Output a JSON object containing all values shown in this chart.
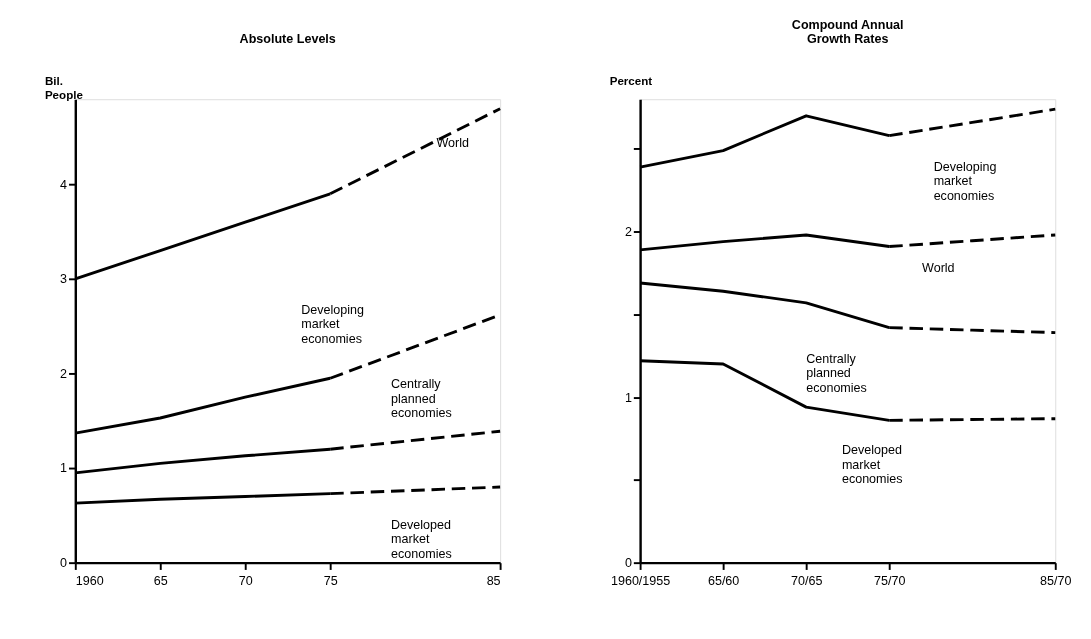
{
  "chart_data": [
    {
      "type": "line",
      "title": "Absolute Levels",
      "ylabel": "Bil.\nPeople",
      "xlim": [
        1960,
        1985
      ],
      "xticks": [
        {
          "value": 1960,
          "label": "1960"
        },
        {
          "value": 1965,
          "label": "65"
        },
        {
          "value": 1970,
          "label": "70"
        },
        {
          "value": 1975,
          "label": "75"
        },
        {
          "value": 1985,
          "label": "85"
        }
      ],
      "ylim": [
        0,
        4.9
      ],
      "yticks": [
        0,
        1,
        2,
        3,
        4
      ],
      "grid": false,
      "series": [
        {
          "color": "#000000",
          "line_style": "solid",
          "x": [
            1960,
            1965,
            1970,
            1975
          ],
          "values": [
            3.0,
            3.3,
            3.6,
            3.9
          ]
        },
        {
          "name": "World",
          "color": "#000000",
          "line_style": "dashed",
          "x": [
            1975,
            1985
          ],
          "values": [
            3.9,
            4.8
          ]
        },
        {
          "color": "#000000",
          "line_style": "solid",
          "x": [
            1960,
            1965,
            1970,
            1975
          ],
          "values": [
            1.37,
            1.53,
            1.75,
            1.95
          ]
        },
        {
          "name": "Developing\nmarket\neconomies",
          "color": "#000000",
          "line_style": "dashed",
          "x": [
            1975,
            1985
          ],
          "values": [
            1.95,
            2.62
          ]
        },
        {
          "color": "#000000",
          "line_style": "solid",
          "x": [
            1960,
            1965,
            1970,
            1975
          ],
          "values": [
            0.95,
            1.05,
            1.13,
            1.2
          ]
        },
        {
          "name": "Centrally\nplanned\neconomies",
          "color": "#000000",
          "line_style": "dashed",
          "x": [
            1975,
            1985
          ],
          "values": [
            1.2,
            1.39
          ]
        },
        {
          "color": "#000000",
          "line_style": "solid",
          "x": [
            1960,
            1965,
            1970,
            1975
          ],
          "values": [
            0.63,
            0.67,
            0.7,
            0.73
          ]
        },
        {
          "name": "Developed\nmarket\neconomies",
          "color": "#000000",
          "line_style": "dashed",
          "x": [
            1975,
            1985
          ],
          "values": [
            0.73,
            0.8
          ]
        }
      ]
    },
    {
      "type": "line",
      "title": "Compound Annual\nGrowth Rates",
      "ylabel": "Percent",
      "categories": [
        "1960/1955",
        "65/60",
        "70/65",
        "75/70",
        null,
        "85/70"
      ],
      "ylim": [
        0,
        2.8
      ],
      "yticks": [
        0,
        {
          "value": 0.5,
          "label": null
        },
        1,
        {
          "value": 1.5,
          "label": null
        },
        2,
        {
          "value": 2.5,
          "label": null
        }
      ],
      "grid": false,
      "series": [
        {
          "color": "#000000",
          "line_style": "solid",
          "values": [
            2.39,
            2.49,
            2.7,
            2.58,
            null,
            null
          ]
        },
        {
          "name": "Developing\nmarket\neconomies",
          "color": "#000000",
          "line_style": "dashed",
          "values": [
            null,
            null,
            null,
            2.58,
            2.66,
            2.74
          ]
        },
        {
          "color": "#000000",
          "line_style": "solid",
          "values": [
            1.89,
            1.94,
            1.98,
            1.91,
            null,
            null
          ]
        },
        {
          "name": "World",
          "color": "#000000",
          "line_style": "dashed",
          "values": [
            null,
            null,
            null,
            1.91,
            1.945,
            1.98
          ]
        },
        {
          "color": "#000000",
          "line_style": "solid",
          "values": [
            1.69,
            1.64,
            1.57,
            1.42,
            null,
            null
          ]
        },
        {
          "name": "Centrally\nplanned\neconomies",
          "color": "#000000",
          "line_style": "dashed",
          "values": [
            null,
            null,
            null,
            1.42,
            1.405,
            1.39
          ]
        },
        {
          "color": "#000000",
          "line_style": "solid",
          "values": [
            1.22,
            1.2,
            0.94,
            0.86,
            null,
            null
          ]
        },
        {
          "name": "Developed\nmarket\neconomies",
          "color": "#000000",
          "line_style": "dashed",
          "values": [
            null,
            null,
            null,
            0.86,
            0.865,
            0.87
          ]
        }
      ]
    }
  ]
}
